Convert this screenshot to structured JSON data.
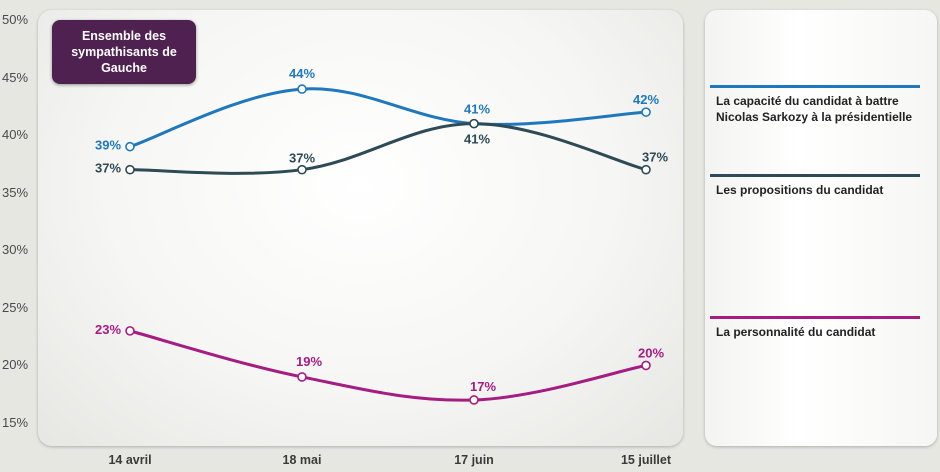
{
  "chart_data": {
    "type": "line",
    "title": "Ensemble des sympathisants de Gauche",
    "categories": [
      "14 avril",
      "18 mai",
      "17 juin",
      "15 juillet"
    ],
    "ylim": [
      15,
      50
    ],
    "yticks": [
      "50%",
      "45%",
      "40%",
      "35%",
      "30%",
      "25%",
      "20%",
      "15%"
    ],
    "ytick_values": [
      50,
      45,
      40,
      35,
      30,
      25,
      20,
      15
    ],
    "grid": false,
    "legend_position": "right",
    "series": [
      {
        "name": "La capacité du candidat à battre Nicolas Sarkozy à la présidentielle",
        "values": [
          39,
          44,
          41,
          42
        ],
        "labels": [
          "39%",
          "44%",
          "41%",
          "42%"
        ],
        "color": "#1f78bd"
      },
      {
        "name": "Les propositions du candidat",
        "values": [
          37,
          37,
          41,
          37
        ],
        "labels": [
          "37%",
          "37%",
          "41%",
          "37%"
        ],
        "color": "#2d4a55"
      },
      {
        "name": "La personnalité du candidat",
        "values": [
          23,
          19,
          17,
          20
        ],
        "labels": [
          "23%",
          "19%",
          "17%",
          "20%"
        ],
        "color": "#a51c82"
      }
    ]
  }
}
